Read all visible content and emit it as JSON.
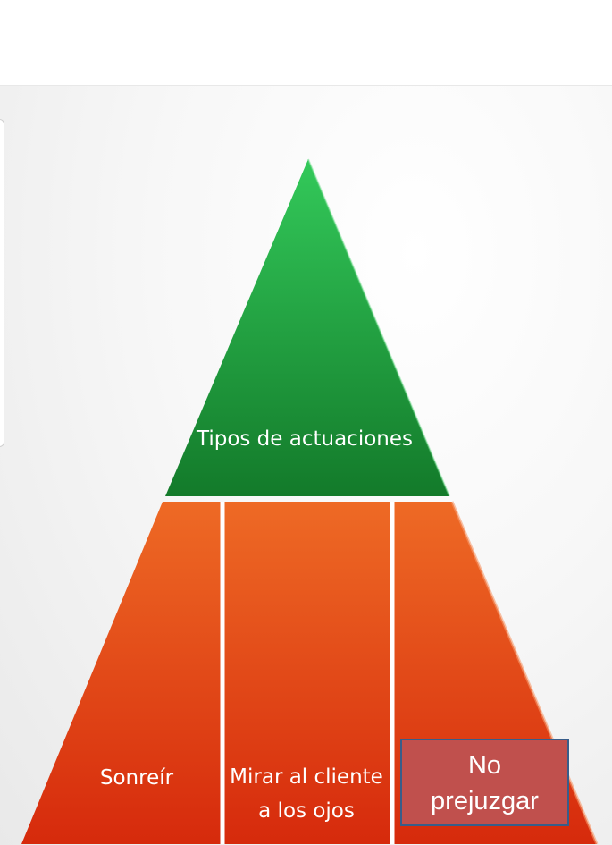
{
  "diagram": {
    "top": {
      "label": "Tipos de actuaciones",
      "color_light": "#33c95a",
      "color_dark": "#137a2a"
    },
    "bottom": {
      "color_light": "#ee6a25",
      "color_dark": "#d62a0c",
      "cells": [
        {
          "lines": [
            "Sonreír"
          ]
        },
        {
          "lines": [
            "Mirar al cliente",
            "a los ojos"
          ]
        },
        {
          "lines": [
            "No",
            "prejuzgar"
          ]
        }
      ]
    },
    "highlight": {
      "line1": "No",
      "line2": "prejuzgar",
      "fill": "#c0504d",
      "border": "#385d8a"
    }
  }
}
